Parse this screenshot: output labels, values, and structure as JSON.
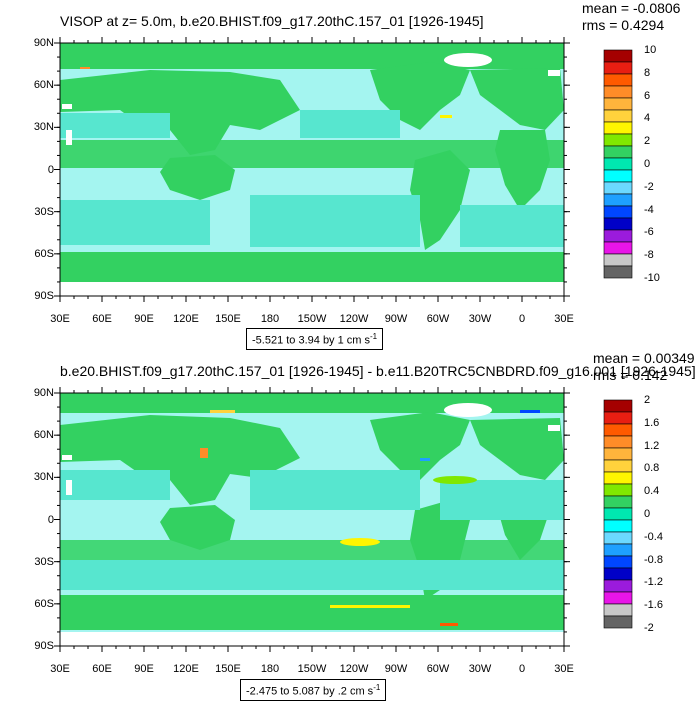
{
  "panels": [
    {
      "title": "VISOP at z=   5.0m, b.e20.BHIST.f09_g17.20thC.157_01 [1926-1945]",
      "mean": "mean = -0.0806",
      "rms": "rms = 0.4294",
      "range_prefix": "-5.521 to 3.94 by 1 cm s",
      "range_exp": "-1",
      "colorbar_labels": [
        "10",
        "8",
        "6",
        "4",
        "2",
        "0",
        "-2",
        "-4",
        "-6",
        "-8",
        "-10"
      ],
      "colors": {
        "ocean": "#57e6cf",
        "ocean_light": "#a4f5f0",
        "land_strip": "#33d161"
      }
    },
    {
      "title": "b.e20.BHIST.f09_g17.20thC.157_01 [1926-1945] - b.e11.B20TRC5CNBDRD.f09_g16.001 [1926-1945]",
      "mean": "mean = 0.00349",
      "rms": "rms = 0.142",
      "range_prefix": "-2.475 to 5.087 by .2 cm s",
      "range_exp": "-1",
      "colorbar_labels": [
        "2",
        "1.6",
        "1.2",
        "0.8",
        "0.4",
        "0",
        "-0.4",
        "-0.8",
        "-1.2",
        "-1.6",
        "-2"
      ],
      "colors": {
        "ocean": "#57e6cf",
        "ocean_light": "#a4f5f0",
        "land_strip": "#33d161"
      }
    }
  ],
  "axes": {
    "lat_labels": [
      "90N",
      "60N",
      "30N",
      "0",
      "30S",
      "60S",
      "90S"
    ],
    "lon_labels": [
      "30E",
      "60E",
      "90E",
      "120E",
      "150E",
      "180",
      "150W",
      "120W",
      "90W",
      "60W",
      "30W",
      "0",
      "30E"
    ]
  },
  "colorbar_colors": [
    "#a50000",
    "#e81e12",
    "#ff5a00",
    "#ff8c28",
    "#ffb43c",
    "#ffd23c",
    "#fff500",
    "#80e800",
    "#33d161",
    "#00e8b0",
    "#00ffff",
    "#6bd9ff",
    "#1ea0ff",
    "#0046ff",
    "#0000c8",
    "#9b1bdc",
    "#e815e8",
    "#c8c8c8",
    "#646464"
  ]
}
